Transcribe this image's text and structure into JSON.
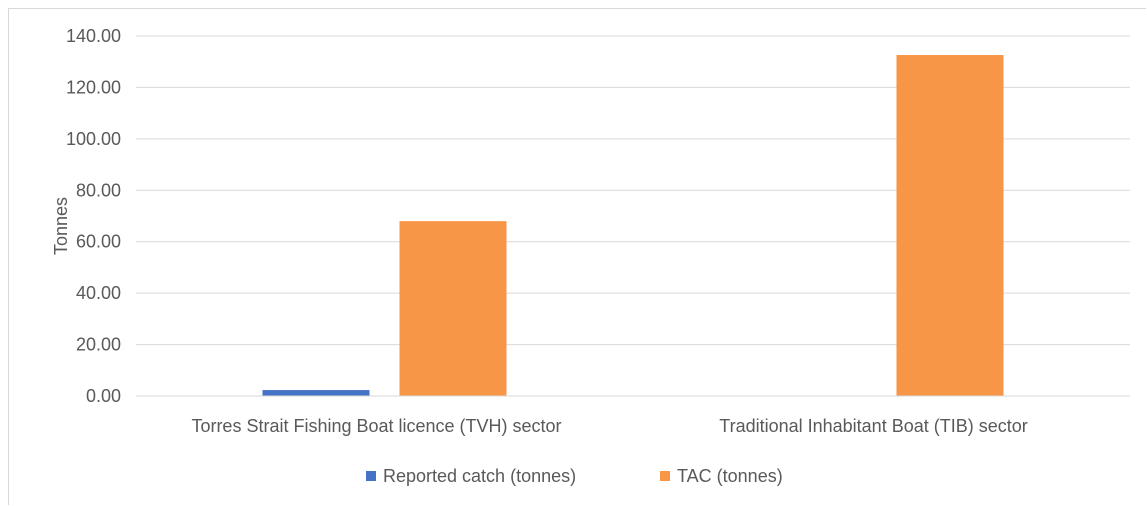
{
  "chart_data": {
    "type": "bar",
    "categories": [
      "Torres Strait Fishing Boat licence (TVH) sector",
      "Traditional Inhabitant Boat (TIB) sector"
    ],
    "series": [
      {
        "name": "Reported catch (tonnes)",
        "color": "#4472C4",
        "values": [
          2.3,
          0
        ]
      },
      {
        "name": "TAC (tonnes)",
        "color": "#F79646",
        "values": [
          68.0,
          132.6
        ]
      }
    ],
    "ylabel": "Tonnes",
    "ylim": [
      0,
      140
    ],
    "yticks": [
      "0.00",
      "20.00",
      "40.00",
      "60.00",
      "80.00",
      "100.00",
      "120.00",
      "140.00"
    ],
    "grid": true,
    "legend_position": "bottom"
  }
}
